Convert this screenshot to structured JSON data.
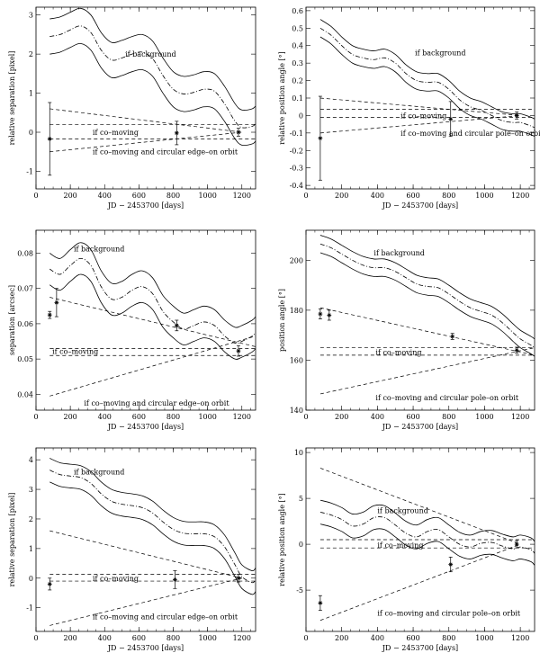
{
  "chart_data": [
    {
      "type": "line",
      "id": "p1",
      "xlabel": "JD − 2453700 [days]",
      "ylabel": "relative separation [pixel]",
      "xlim": [
        0,
        1280
      ],
      "ylim": [
        -1.45,
        3.2
      ],
      "xticks": [
        0,
        200,
        400,
        600,
        800,
        1000,
        1200
      ],
      "yticks": [
        -1,
        0,
        1,
        2,
        3
      ],
      "background_track": {
        "x": [
          80,
          140,
          200,
          260,
          320,
          380,
          440,
          500,
          560,
          620,
          680,
          740,
          800,
          860,
          920,
          980,
          1040,
          1100,
          1160,
          1200,
          1260,
          1280
        ],
        "y": [
          2.45,
          2.5,
          2.62,
          2.72,
          2.55,
          2.1,
          1.85,
          1.9,
          2.0,
          2.05,
          1.88,
          1.45,
          1.1,
          0.98,
          1.02,
          1.1,
          1.05,
          0.72,
          0.28,
          0.12,
          0.15,
          0.22
        ],
        "band": 0.45
      },
      "dashed_lines": [
        {
          "x": [
            80,
            1280
          ],
          "y": [
            0.2,
            0.2
          ]
        },
        {
          "x": [
            80,
            1280
          ],
          "y": [
            -0.17,
            -0.17
          ]
        },
        {
          "x": [
            80,
            1200
          ],
          "y": [
            0.6,
            0.0
          ]
        },
        {
          "x": [
            80,
            1200
          ],
          "y": [
            -0.5,
            0.0
          ]
        }
      ],
      "points": [
        {
          "x": 80,
          "y": -0.17,
          "err": 0.93
        },
        {
          "x": 820,
          "y": -0.02,
          "err": 0.3
        },
        {
          "x": 1180,
          "y": 0.0,
          "err": 0.1
        }
      ],
      "annotations": [
        {
          "text": "if background",
          "x": 520,
          "y": 2.0
        },
        {
          "text": "if co–moving",
          "x": 330,
          "y": 0.0
        },
        {
          "text": "if co–moving and circular edge–on orbit",
          "x": 330,
          "y": -0.5
        }
      ]
    },
    {
      "type": "line",
      "id": "p2",
      "xlabel": "JD − 2453700 [days]",
      "ylabel": "relative position angle [°]",
      "xlim": [
        0,
        1280
      ],
      "ylim": [
        -0.42,
        0.62
      ],
      "xticks": [
        0,
        200,
        400,
        600,
        800,
        1000,
        1200
      ],
      "yticks": [
        -0.4,
        -0.3,
        -0.2,
        -0.1,
        0.0,
        0.1,
        0.2,
        0.3,
        0.4,
        0.5,
        0.6
      ],
      "background_track": {
        "x": [
          80,
          140,
          200,
          260,
          320,
          380,
          440,
          500,
          560,
          620,
          680,
          740,
          800,
          860,
          920,
          980,
          1040,
          1100,
          1160,
          1200,
          1260,
          1280
        ],
        "y": [
          0.5,
          0.46,
          0.4,
          0.35,
          0.33,
          0.32,
          0.33,
          0.3,
          0.24,
          0.2,
          0.19,
          0.19,
          0.15,
          0.09,
          0.05,
          0.03,
          0.0,
          -0.03,
          -0.04,
          -0.04,
          -0.06,
          -0.07
        ],
        "band": 0.05
      },
      "dashed_lines": [
        {
          "x": [
            80,
            1280
          ],
          "y": [
            0.035,
            0.035
          ]
        },
        {
          "x": [
            80,
            1280
          ],
          "y": [
            -0.01,
            -0.01
          ]
        },
        {
          "x": [
            80,
            1200
          ],
          "y": [
            0.1,
            0.0
          ]
        },
        {
          "x": [
            80,
            1200
          ],
          "y": [
            -0.1,
            0.0
          ]
        }
      ],
      "points": [
        {
          "x": 80,
          "y": -0.13,
          "err": 0.24
        },
        {
          "x": 810,
          "y": -0.02,
          "err": 0.1
        },
        {
          "x": 1180,
          "y": 0.0,
          "err": 0.02
        }
      ],
      "annotations": [
        {
          "text": "if background",
          "x": 610,
          "y": 0.36
        },
        {
          "text": "if co–moving",
          "x": 530,
          "y": 0.0
        },
        {
          "text": "if co–moving and circular pole–on orbit",
          "x": 530,
          "y": -0.1
        }
      ]
    },
    {
      "type": "line",
      "id": "p3",
      "xlabel": "JD − 2453700 [days]",
      "ylabel": "separation [arcsec]",
      "xlim": [
        0,
        1280
      ],
      "ylim": [
        0.0355,
        0.0865
      ],
      "xticks": [
        0,
        200,
        400,
        600,
        800,
        1000,
        1200
      ],
      "yticks": [
        0.04,
        0.05,
        0.06,
        0.07,
        0.08
      ],
      "background_track": {
        "x": [
          80,
          140,
          200,
          260,
          320,
          380,
          440,
          500,
          560,
          620,
          680,
          740,
          800,
          860,
          920,
          980,
          1040,
          1100,
          1160,
          1200,
          1260,
          1280
        ],
        "y": [
          0.0755,
          0.074,
          0.0765,
          0.0785,
          0.0765,
          0.0705,
          0.067,
          0.0675,
          0.0695,
          0.0705,
          0.0685,
          0.0635,
          0.0605,
          0.0585,
          0.0595,
          0.0605,
          0.0595,
          0.0565,
          0.0545,
          0.055,
          0.0565,
          0.0575
        ],
        "band": 0.0045
      },
      "dashed_lines": [
        {
          "x": [
            80,
            1280
          ],
          "y": [
            0.053,
            0.053
          ]
        },
        {
          "x": [
            80,
            1280
          ],
          "y": [
            0.051,
            0.051
          ]
        },
        {
          "x": [
            80,
            1280
          ],
          "y": [
            0.0675,
            0.0535
          ]
        },
        {
          "x": [
            80,
            1280
          ],
          "y": [
            0.0395,
            0.0565
          ]
        }
      ],
      "points": [
        {
          "x": 80,
          "y": 0.0625,
          "err": 0.001
        },
        {
          "x": 120,
          "y": 0.066,
          "err": 0.004
        },
        {
          "x": 820,
          "y": 0.0595,
          "err": 0.0015
        },
        {
          "x": 1180,
          "y": 0.0523,
          "err": 0.0015
        }
      ],
      "annotations": [
        {
          "text": "if background",
          "x": 220,
          "y": 0.0813
        },
        {
          "text": "if co–moving",
          "x": 95,
          "y": 0.0522
        },
        {
          "text": "if co–moving and circular edge–on orbit",
          "x": 280,
          "y": 0.0375
        }
      ]
    },
    {
      "type": "line",
      "id": "p4",
      "xlabel": "JD − 2453700 [days]",
      "ylabel": "position angle [°]",
      "xlim": [
        0,
        1280
      ],
      "ylim": [
        140,
        212
      ],
      "xticks": [
        0,
        200,
        400,
        600,
        800,
        1000,
        1200
      ],
      "yticks": [
        140,
        160,
        180,
        200
      ],
      "background_track": {
        "x": [
          80,
          140,
          200,
          260,
          320,
          380,
          440,
          500,
          560,
          620,
          680,
          740,
          800,
          860,
          920,
          980,
          1040,
          1100,
          1160,
          1200,
          1260,
          1280
        ],
        "y": [
          206.5,
          205,
          202.5,
          200,
          198,
          197,
          197,
          195.5,
          193,
          190.5,
          189.5,
          189,
          186.5,
          183.5,
          181,
          179.5,
          178,
          175,
          171,
          168.5,
          166,
          165
        ],
        "band": 3.5
      },
      "dashed_lines": [
        {
          "x": [
            80,
            1280
          ],
          "y": [
            165,
            165
          ]
        },
        {
          "x": [
            80,
            1280
          ],
          "y": [
            162,
            162
          ]
        },
        {
          "x": [
            80,
            1280
          ],
          "y": [
            181,
            162
          ]
        },
        {
          "x": [
            80,
            1280
          ],
          "y": [
            146.5,
            165
          ]
        }
      ],
      "points": [
        {
          "x": 80,
          "y": 178.5,
          "err": 2
        },
        {
          "x": 130,
          "y": 178,
          "err": 2
        },
        {
          "x": 820,
          "y": 169.5,
          "err": 1.2
        },
        {
          "x": 1180,
          "y": 164,
          "err": 1.2
        }
      ],
      "annotations": [
        {
          "text": "if background",
          "x": 380,
          "y": 203
        },
        {
          "text": "if co–moving",
          "x": 390,
          "y": 163.2
        },
        {
          "text": "if co–moving and circular pole–on orbit",
          "x": 390,
          "y": 145
        }
      ]
    },
    {
      "type": "line",
      "id": "p5",
      "xlabel": "JD − 2453700 [days]",
      "ylabel": "relative separation [pixel]",
      "xlim": [
        0,
        1280
      ],
      "ylim": [
        -1.8,
        4.4
      ],
      "xticks": [
        0,
        200,
        400,
        600,
        800,
        1000,
        1200
      ],
      "yticks": [
        -1,
        0,
        1,
        2,
        3,
        4
      ],
      "background_track": {
        "x": [
          80,
          140,
          200,
          260,
          320,
          380,
          440,
          500,
          560,
          620,
          680,
          740,
          800,
          860,
          920,
          980,
          1040,
          1100,
          1160,
          1200,
          1260,
          1280
        ],
        "y": [
          3.65,
          3.5,
          3.45,
          3.4,
          3.2,
          2.85,
          2.6,
          2.5,
          2.45,
          2.38,
          2.2,
          1.9,
          1.65,
          1.52,
          1.5,
          1.5,
          1.4,
          1.05,
          0.45,
          0.05,
          -0.15,
          -0.05
        ],
        "band": 0.4
      },
      "dashed_lines": [
        {
          "x": [
            80,
            1280
          ],
          "y": [
            0.13,
            0.13
          ]
        },
        {
          "x": [
            80,
            1280
          ],
          "y": [
            -0.1,
            -0.1
          ]
        },
        {
          "x": [
            80,
            1200
          ],
          "y": [
            1.6,
            0.0
          ]
        },
        {
          "x": [
            80,
            1200
          ],
          "y": [
            -1.6,
            0.0
          ]
        }
      ],
      "points": [
        {
          "x": 80,
          "y": -0.2,
          "err": 0.2
        },
        {
          "x": 810,
          "y": -0.05,
          "err": 0.3
        },
        {
          "x": 1180,
          "y": 0.0,
          "err": 0.13
        }
      ],
      "annotations": [
        {
          "text": "if background",
          "x": 220,
          "y": 3.6
        },
        {
          "text": "if co–moving",
          "x": 330,
          "y": 0.0
        },
        {
          "text": "if co–moving and circular edge–on orbit",
          "x": 330,
          "y": -1.3
        }
      ]
    },
    {
      "type": "line",
      "id": "p6",
      "xlabel": "JD − 2453700 [days]",
      "ylabel": "relative position angle [°]",
      "xlim": [
        0,
        1280
      ],
      "ylim": [
        -9.5,
        10.5
      ],
      "xticks": [
        0,
        200,
        400,
        600,
        800,
        1000,
        1200
      ],
      "yticks": [
        -5,
        0,
        5,
        10
      ],
      "background_track": {
        "x": [
          80,
          140,
          200,
          260,
          320,
          380,
          440,
          500,
          560,
          620,
          680,
          740,
          800,
          860,
          920,
          980,
          1040,
          1100,
          1160,
          1200,
          1260,
          1280
        ],
        "y": [
          3.5,
          3.2,
          2.7,
          2.0,
          2.2,
          2.9,
          2.9,
          2.1,
          1.2,
          0.8,
          1.4,
          1.6,
          0.8,
          0.0,
          -0.3,
          0.1,
          0.2,
          -0.2,
          -0.5,
          -0.3,
          -0.6,
          -1.0
        ],
        "band": 1.3
      },
      "dashed_lines": [
        {
          "x": [
            80,
            1280
          ],
          "y": [
            0.5,
            0.5
          ]
        },
        {
          "x": [
            80,
            1280
          ],
          "y": [
            -0.4,
            -0.4
          ]
        },
        {
          "x": [
            80,
            1200
          ],
          "y": [
            8.3,
            0.0
          ]
        },
        {
          "x": [
            80,
            1200
          ],
          "y": [
            -8.3,
            0.0
          ]
        }
      ],
      "points": [
        {
          "x": 80,
          "y": -6.4,
          "err": 0.8
        },
        {
          "x": 810,
          "y": -2.2,
          "err": 0.8
        },
        {
          "x": 1180,
          "y": 0.0,
          "err": 0.4
        }
      ],
      "annotations": [
        {
          "text": "if background",
          "x": 400,
          "y": 3.7
        },
        {
          "text": "if co–moving",
          "x": 400,
          "y": -0.1
        },
        {
          "text": "if co–moving and circular pole–on orbit",
          "x": 400,
          "y": -7.5
        }
      ]
    }
  ]
}
